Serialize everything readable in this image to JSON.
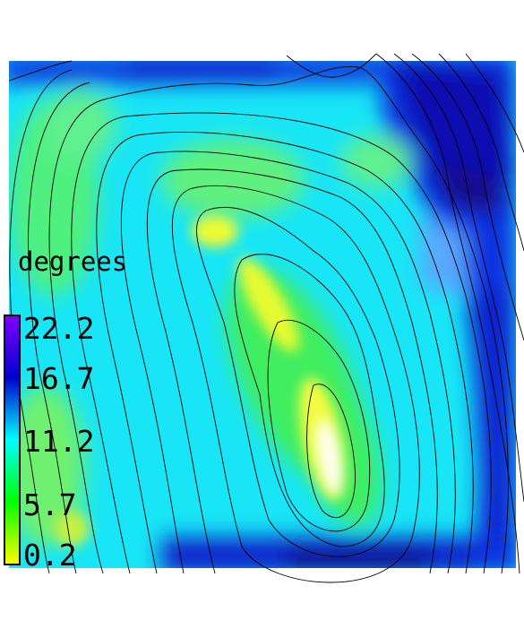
{
  "chart_data": {
    "type": "heatmap",
    "title": "",
    "colorbar": {
      "label": "degrees",
      "ticks": [
        22.2,
        16.7,
        11.2,
        5.7,
        0.2
      ],
      "tick_labels": [
        "22.2",
        "16.7",
        "11.2",
        "5.7",
        "0.2"
      ],
      "range": [
        0.2,
        22.2
      ],
      "colors": [
        "#ffff00",
        "#00ff00",
        "#00ffff",
        "#0000cc",
        "#8000ff"
      ]
    },
    "field_description": "scalar angle field with overlaid black contour lines",
    "grid": false,
    "legend": "left"
  }
}
